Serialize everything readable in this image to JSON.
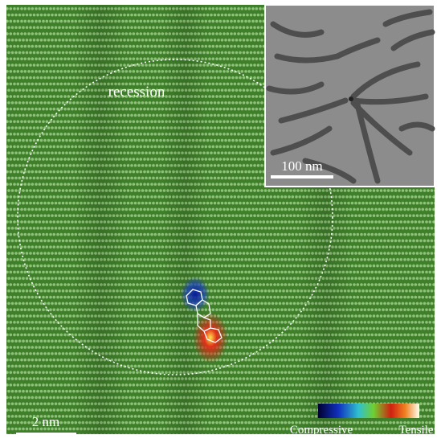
{
  "main": {
    "annotation": "recession",
    "scale_bar": "2 nm"
  },
  "inset": {
    "scale_bar": "100 nm"
  },
  "colorbar": {
    "low_label": "Compressive",
    "high_label": "Tensile"
  }
}
